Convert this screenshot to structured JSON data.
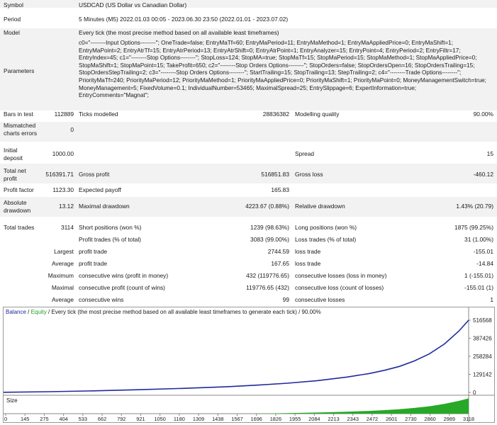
{
  "report": {
    "symbol": {
      "label": "Symbol",
      "value": "USDCAD (US Dollar vs Canadian Dollar)"
    },
    "period": {
      "label": "Period",
      "value": "5 Minutes (M5) 2022.01.03 00:05 - 2023.06.30 23:50 (2022.01.01 - 2023.07.02)"
    },
    "model": {
      "label": "Model",
      "value": "Every tick (the most precise method based on all available least timeframes)"
    },
    "parameters": {
      "label": "Parameters",
      "text": "c0=\"--------Input Options--------\"; OneTrade=false; EntryMaTf=60; EntryMaPeriod=11; EntryMaMethod=1; EntryMaAppliedPrice=0; EntryMaShift=1; EntryMaPoint=2; EntryAtrTf=15; EntryAtrPeriod=13; EntryAtrShift=0; EntryAtrPoint=1; EntryAnalyzer=15; EntryPoint=4; EntryPeriod=2; EntryFiltr=17; EntryIndex=45; c1=\"--------Stop Options--------\"; StopLoss=124; StopMA=true; StopMaTf=15; StopMaPeriod=15; StopMaMethod=1; StopMaAppliedPrice=0; StopMaShift=1; StopMaPoint=15; TakeProfit=650; c2=\"--------Stop Orders Options--------\"; StopOrders=false; StopOrdersOpen=16; StopOrdersTrailing=15; StopOrdersStepTrailing=2; c3=\"--------Stop Orders Options--------\"; StartTrailing=15; StopTrailing=13; StepTrailing=2; c4=\"--------Trade Options--------\"; PriorityMaTf=240; PriorityMaPeriod=12; PriorityMaMethod=1; PriorityMaAppliedPrice=0; PriorityMaShift=1; PriorityMaPoint=0; MoneyManagementSwitch=true; MoneyManagement=5; FixedVolume=0.1; IndividualNumber=53465; MaximalSpread=25; EntrySlippage=6; ExpertInformation=true; EntryComments=\"Magnat\";"
    },
    "bars_in_test": {
      "label": "Bars in test",
      "value": "112889"
    },
    "ticks_modelled": {
      "label": "Ticks modelled",
      "value": "28836382"
    },
    "modelling_quality": {
      "label": "Modelling quality",
      "value": "90.00%"
    },
    "mismatched": {
      "label_1": "Mismatched",
      "label_2": "charts errors",
      "value": "0"
    },
    "initial_deposit": {
      "label_1": "Initial",
      "label_2": "deposit",
      "value": "1000.00"
    },
    "spread": {
      "label": "Spread",
      "value": "15"
    },
    "total_net_profit": {
      "label_1": "Total net",
      "label_2": "profit",
      "value": "516391.71"
    },
    "gross_profit": {
      "label": "Gross profit",
      "value": "516851.83"
    },
    "gross_loss": {
      "label": "Gross loss",
      "value": "-460.12"
    },
    "profit_factor": {
      "label": "Profit factor",
      "value": "1123.30"
    },
    "expected_payoff": {
      "label": "Expected payoff",
      "value": "165.83"
    },
    "absolute_drawdown": {
      "label_1": "Absolute",
      "label_2": "drawdown",
      "value": "13.12"
    },
    "maximal_drawdown": {
      "label": "Maximal drawdown",
      "value": "4223.67 (0.88%)"
    },
    "relative_drawdown": {
      "label": "Relative drawdown",
      "value": "1.43% (20.79)"
    },
    "total_trades": {
      "label": "Total trades",
      "value": "3114"
    },
    "short_positions": {
      "label": "Short positions (won %)",
      "value": "1239 (98.63%)"
    },
    "long_positions": {
      "label": "Long positions (won %)",
      "value": "1875 (99.25%)"
    },
    "profit_trades": {
      "label": "Profit trades (% of total)",
      "value": "3083 (99.00%)"
    },
    "loss_trades": {
      "label": "Loss trades (% of total)",
      "value": "31 (1.00%)"
    },
    "largest": {
      "label": "Largest",
      "profit_label": "profit trade",
      "profit_value": "2744.59",
      "loss_label": "loss trade",
      "loss_value": "-155.01"
    },
    "average": {
      "label": "Average",
      "profit_label": "profit trade",
      "profit_value": "167.65",
      "loss_label": "loss trade",
      "loss_value": "-14.84"
    },
    "maximum": {
      "label": "Maximum",
      "profit_label": "consecutive wins (profit in money)",
      "profit_value": "432 (119776.65)",
      "loss_label": "consecutive losses (loss in money)",
      "loss_value": "1 (-155.01)"
    },
    "maximal": {
      "label": "Maximal",
      "profit_label": "consecutive profit (count of wins)",
      "profit_value": "119776.65 (432)",
      "loss_label": "consecutive loss (count of losses)",
      "loss_value": "-155.01 (1)"
    },
    "average_consecutive": {
      "label": "Average",
      "profit_label": "consecutive wins",
      "profit_value": "99",
      "loss_label": "consecutive losses",
      "loss_value": "1"
    }
  },
  "chart_data": {
    "type": "line",
    "header": {
      "balance": "Balance",
      "sep1": " / ",
      "equity": "Equity",
      "rest": " / Every tick (the most precise method based on all available least timeframes to generate each tick) / 90.00%"
    },
    "colors": {
      "balance": "#1f2a9c",
      "equity": "#22a022",
      "size": "#27a827"
    },
    "size_label": "Size",
    "y_tick_labels": [
      "516568",
      "387426",
      "258284",
      "129142",
      "0"
    ],
    "x_tick_labels": [
      "0",
      "145",
      "275",
      "404",
      "533",
      "662",
      "792",
      "921",
      "1050",
      "1180",
      "1309",
      "1438",
      "1567",
      "1696",
      "1826",
      "1955",
      "2084",
      "2213",
      "2343",
      "2472",
      "2601",
      "2730",
      "2860",
      "2989",
      "3118"
    ],
    "ylim": [
      0,
      516568
    ],
    "xlim": [
      0,
      3114
    ],
    "series": [
      {
        "name": "Balance",
        "x": [
          0,
          300,
          600,
          900,
          1200,
          1500,
          1700,
          1900,
          2100,
          2300,
          2450,
          2550,
          2650,
          2750,
          2850,
          2950,
          3050,
          3114
        ],
        "values": [
          1000,
          5000,
          11000,
          19000,
          29000,
          41000,
          52000,
          66000,
          84000,
          110000,
          135000,
          158000,
          186000,
          225000,
          275000,
          345000,
          440000,
          516392
        ]
      }
    ]
  }
}
